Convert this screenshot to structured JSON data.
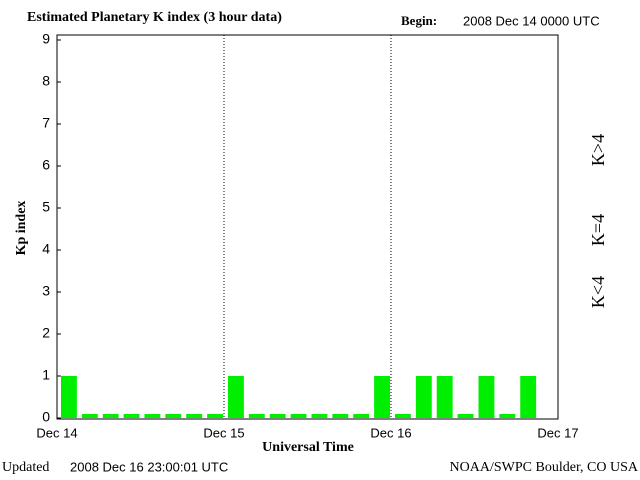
{
  "chart_data": {
    "type": "bar",
    "title": "Estimated Planetary K index (3 hour data)",
    "begin_label": "Begin:",
    "begin": "2008 Dec 14 0000 UTC",
    "y_label": "Kp index",
    "x_label": "Universal Time",
    "updated_label": "Updated",
    "updated": "2008 Dec 16 23:00:01 UTC",
    "source": "NOAA/SWPC Boulder, CO USA",
    "x": [
      0,
      3,
      6,
      9,
      12,
      15,
      18,
      21,
      24,
      27,
      30,
      33,
      36,
      39,
      42,
      45,
      48,
      51,
      54,
      57,
      60,
      63,
      66
    ],
    "values": [
      1,
      0,
      0,
      0,
      0,
      0,
      0,
      0,
      1,
      0,
      0,
      0,
      0,
      0,
      0,
      1,
      0,
      1,
      1,
      0,
      1,
      0,
      1
    ],
    "bar_hours": 3,
    "xlim": [
      0,
      72
    ],
    "xticks": [
      {
        "value": 0,
        "label": "Dec 14"
      },
      {
        "value": 24,
        "label": "Dec 15"
      },
      {
        "value": 48,
        "label": "Dec 16"
      },
      {
        "value": 72,
        "label": "Dec 17"
      }
    ],
    "ylim": [
      0,
      9
    ],
    "yticks": [
      0,
      1,
      2,
      3,
      4,
      5,
      6,
      7,
      8,
      9
    ],
    "grid": true,
    "legend": [
      {
        "label": "K>4",
        "color": "#ff2200",
        "min": 5
      },
      {
        "label": "K=4",
        "color": "#ffcc00",
        "min": 4
      },
      {
        "label": "K<4",
        "color": "#00ee00",
        "min": 0
      }
    ]
  }
}
